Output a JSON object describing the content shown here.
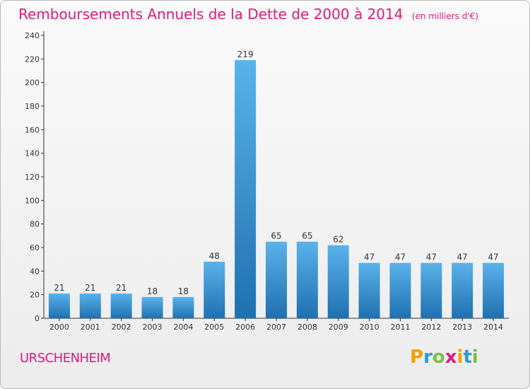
{
  "title": "Remboursements Annuels de la Dette de 2000 à 2014",
  "unit": "(en milliers d'€)",
  "commune": "URSCHENHEIM",
  "logo": {
    "letters": [
      "P",
      "r",
      "o",
      "x",
      "i",
      "t",
      "i"
    ],
    "colors": [
      "#f5a000",
      "#2e9bd6",
      "#7ac143",
      "#e0197d",
      "#f5a000",
      "#2e9bd6",
      "#7ac143"
    ]
  },
  "colors": {
    "title": "#e0197d",
    "bar_top": "#5ab2ea",
    "bar_bottom": "#1f70b0",
    "axis": "#333333"
  },
  "chart_data": {
    "type": "bar",
    "categories": [
      "2000",
      "2001",
      "2002",
      "2003",
      "2004",
      "2005",
      "2006",
      "2007",
      "2008",
      "2009",
      "2010",
      "2011",
      "2012",
      "2013",
      "2014"
    ],
    "values": [
      21,
      21,
      21,
      18,
      18,
      48,
      219,
      65,
      65,
      62,
      47,
      47,
      47,
      47,
      47
    ],
    "data_labels": [
      "21",
      "21",
      "21",
      "18",
      "18",
      "48",
      "219",
      "65",
      "65",
      "62",
      "47",
      "47",
      "47",
      "47",
      "47"
    ],
    "ylim": [
      0,
      240
    ],
    "yticks": [
      0,
      20,
      40,
      60,
      80,
      100,
      120,
      140,
      160,
      180,
      200,
      220,
      240
    ],
    "grid": false,
    "xlabel": "",
    "ylabel": ""
  }
}
